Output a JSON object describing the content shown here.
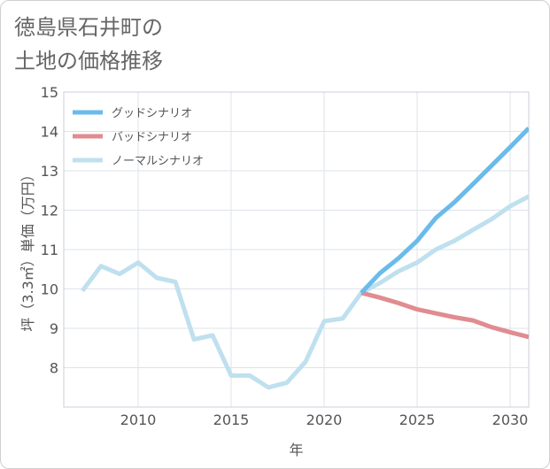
{
  "title_line1": "徳島県石井町の",
  "title_line2": "土地の価格推移",
  "chart_data": {
    "type": "line",
    "xlabel": "年",
    "ylabel": "坪（3.3㎡）単価（万円）",
    "xlim": [
      2006,
      2031
    ],
    "ylim": [
      7,
      15
    ],
    "x_ticks": [
      2010,
      2015,
      2020,
      2025,
      2030
    ],
    "y_ticks": [
      8,
      9,
      10,
      11,
      12,
      13,
      14,
      15
    ],
    "grid": true,
    "legend_position": "top-left",
    "series": [
      {
        "name": "グッドシナリオ",
        "color": "#6bbbea",
        "x": [
          2022,
          2023,
          2024,
          2025,
          2026,
          2027,
          2028,
          2029,
          2030,
          2031
        ],
        "values": [
          9.9,
          10.4,
          10.78,
          11.22,
          11.8,
          12.2,
          12.66,
          13.13,
          13.6,
          14.08
        ]
      },
      {
        "name": "バッドシナリオ",
        "color": "#e08c91",
        "x": [
          2022,
          2023,
          2024,
          2025,
          2026,
          2027,
          2028,
          2029,
          2030,
          2031
        ],
        "values": [
          9.9,
          9.78,
          9.64,
          9.48,
          9.38,
          9.28,
          9.2,
          9.03,
          8.9,
          8.78
        ]
      },
      {
        "name": "ノーマルシナリオ",
        "color": "#bfe0ee",
        "x": [
          2007,
          2008,
          2009,
          2010,
          2011,
          2012,
          2013,
          2014,
          2015,
          2016,
          2017,
          2018,
          2019,
          2020,
          2021,
          2022,
          2023,
          2024,
          2025,
          2026,
          2027,
          2028,
          2029,
          2030,
          2031
        ],
        "values": [
          9.95,
          10.58,
          10.38,
          10.67,
          10.28,
          10.18,
          8.72,
          8.82,
          7.8,
          7.8,
          7.5,
          7.62,
          8.15,
          9.18,
          9.25,
          9.9,
          10.15,
          10.45,
          10.67,
          11.0,
          11.22,
          11.5,
          11.77,
          12.1,
          12.35
        ]
      }
    ]
  }
}
